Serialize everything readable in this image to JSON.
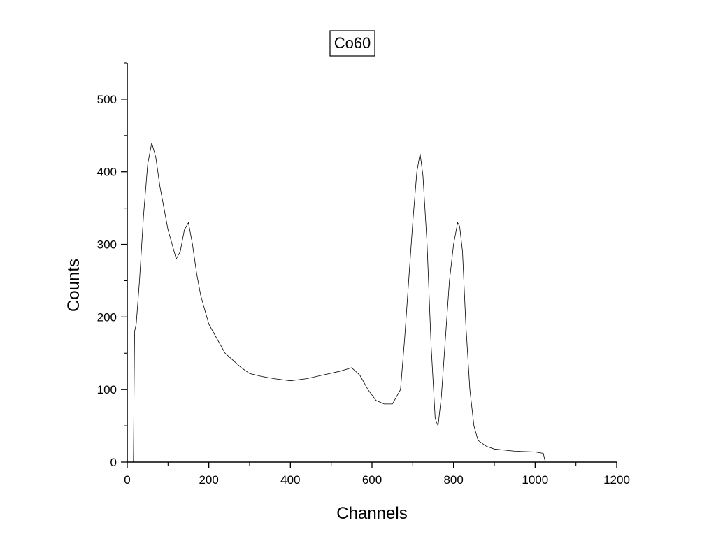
{
  "chart_data": {
    "type": "line",
    "title": "Co60",
    "xlabel": "Channels",
    "ylabel": "Counts",
    "xlim": [
      0,
      1200
    ],
    "ylim": [
      0,
      550
    ],
    "xticks": [
      0,
      200,
      400,
      600,
      800,
      1000,
      1200
    ],
    "yticks": [
      0,
      100,
      200,
      300,
      400,
      500
    ],
    "grid": false,
    "legend": "none",
    "line_color": "#000000",
    "series": [
      {
        "x": [
          0,
          15,
          18,
          22,
          30,
          40,
          50,
          60,
          70,
          80,
          90,
          100,
          110,
          120,
          130,
          140,
          150,
          160,
          170,
          180,
          190,
          200,
          220,
          240,
          260,
          280,
          300,
          330,
          360,
          400,
          440,
          480,
          520,
          550,
          570,
          590,
          610,
          630,
          650,
          670,
          680,
          690,
          700,
          710,
          718,
          725,
          735,
          745,
          755,
          762,
          770,
          780,
          790,
          800,
          810,
          815,
          822,
          830,
          840,
          850,
          860,
          880,
          900,
          950,
          1000,
          1020,
          1025
        ],
        "y": [
          0,
          0,
          180,
          190,
          250,
          340,
          410,
          440,
          420,
          380,
          350,
          320,
          300,
          280,
          290,
          320,
          330,
          300,
          260,
          230,
          210,
          190,
          170,
          150,
          140,
          130,
          122,
          118,
          115,
          112,
          115,
          120,
          125,
          130,
          120,
          100,
          85,
          80,
          80,
          100,
          170,
          250,
          330,
          400,
          425,
          395,
          300,
          160,
          60,
          50,
          90,
          170,
          250,
          300,
          330,
          325,
          290,
          190,
          100,
          50,
          30,
          22,
          18,
          15,
          14,
          12,
          0
        ]
      }
    ]
  }
}
